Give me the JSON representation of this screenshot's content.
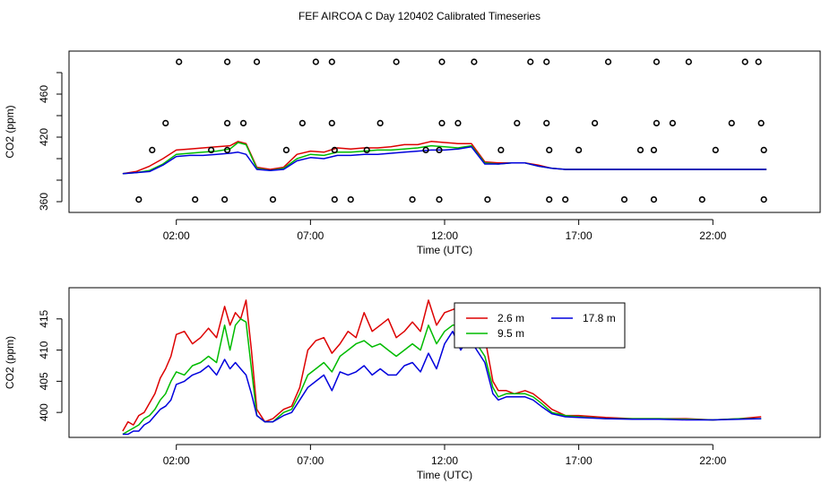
{
  "title": "FEF AIRCOA C  Day 120402  Calibrated Timeseries",
  "chart_data": [
    {
      "type": "scatter",
      "panel": "top",
      "xlabel": "Time (UTC)",
      "ylabel": "CO2 (ppm)",
      "xlim": [
        -2,
        26
      ],
      "ylim": [
        350,
        500
      ],
      "xticks": [
        2,
        7,
        12,
        17,
        22
      ],
      "xtick_labels": [
        "02:00",
        "07:00",
        "12:00",
        "17:00",
        "22:00"
      ],
      "yticks": [
        360,
        380,
        400,
        420,
        440,
        460,
        480
      ],
      "ytick_labels": [
        "360",
        "",
        "",
        "420",
        "",
        "460",
        ""
      ],
      "points": [
        {
          "x": 0.6,
          "y": 362
        },
        {
          "x": 1.1,
          "y": 408
        },
        {
          "x": 1.6,
          "y": 433
        },
        {
          "x": 2.1,
          "y": 490
        },
        {
          "x": 2.7,
          "y": 362
        },
        {
          "x": 3.3,
          "y": 408
        },
        {
          "x": 3.8,
          "y": 362
        },
        {
          "x": 3.9,
          "y": 433
        },
        {
          "x": 3.9,
          "y": 408
        },
        {
          "x": 3.9,
          "y": 490
        },
        {
          "x": 4.5,
          "y": 433
        },
        {
          "x": 5.0,
          "y": 490
        },
        {
          "x": 5.6,
          "y": 362
        },
        {
          "x": 6.1,
          "y": 408
        },
        {
          "x": 6.7,
          "y": 433
        },
        {
          "x": 7.2,
          "y": 490
        },
        {
          "x": 7.8,
          "y": 490
        },
        {
          "x": 7.8,
          "y": 433
        },
        {
          "x": 7.9,
          "y": 362
        },
        {
          "x": 7.9,
          "y": 408
        },
        {
          "x": 8.5,
          "y": 362
        },
        {
          "x": 9.1,
          "y": 408
        },
        {
          "x": 9.6,
          "y": 433
        },
        {
          "x": 10.2,
          "y": 490
        },
        {
          "x": 10.8,
          "y": 362
        },
        {
          "x": 11.3,
          "y": 408
        },
        {
          "x": 11.8,
          "y": 362
        },
        {
          "x": 11.8,
          "y": 408
        },
        {
          "x": 11.9,
          "y": 433
        },
        {
          "x": 11.9,
          "y": 490
        },
        {
          "x": 12.5,
          "y": 433
        },
        {
          "x": 13.1,
          "y": 490
        },
        {
          "x": 13.6,
          "y": 362
        },
        {
          "x": 14.1,
          "y": 408
        },
        {
          "x": 14.7,
          "y": 433
        },
        {
          "x": 15.2,
          "y": 490
        },
        {
          "x": 15.8,
          "y": 490
        },
        {
          "x": 15.8,
          "y": 433
        },
        {
          "x": 15.9,
          "y": 408
        },
        {
          "x": 15.9,
          "y": 362
        },
        {
          "x": 16.5,
          "y": 362
        },
        {
          "x": 17.0,
          "y": 408
        },
        {
          "x": 17.6,
          "y": 433
        },
        {
          "x": 18.1,
          "y": 490
        },
        {
          "x": 18.7,
          "y": 362
        },
        {
          "x": 19.3,
          "y": 408
        },
        {
          "x": 19.8,
          "y": 362
        },
        {
          "x": 19.8,
          "y": 408
        },
        {
          "x": 19.9,
          "y": 433
        },
        {
          "x": 19.9,
          "y": 490
        },
        {
          "x": 20.5,
          "y": 433
        },
        {
          "x": 21.1,
          "y": 490
        },
        {
          "x": 21.6,
          "y": 362
        },
        {
          "x": 22.1,
          "y": 408
        },
        {
          "x": 22.7,
          "y": 433
        },
        {
          "x": 23.2,
          "y": 490
        },
        {
          "x": 23.7,
          "y": 490
        },
        {
          "x": 23.8,
          "y": 433
        },
        {
          "x": 23.9,
          "y": 408
        },
        {
          "x": 23.9,
          "y": 362
        }
      ],
      "series": [
        {
          "name": "2.6 m",
          "color": "#dd0000",
          "x": [
            0,
            0.5,
            1,
            1.5,
            2,
            2.5,
            3,
            3.5,
            4,
            4.3,
            4.6,
            5,
            5.5,
            6,
            6.5,
            7,
            7.5,
            8,
            8.5,
            9,
            9.5,
            10,
            10.5,
            11,
            11.5,
            12,
            12.5,
            13,
            13.5,
            14,
            14.5,
            15,
            15.5,
            16,
            16.5,
            17,
            17.5,
            18,
            19,
            20,
            21,
            22,
            23,
            24
          ],
          "y": [
            386,
            388,
            393,
            400,
            408,
            409,
            410,
            411,
            412,
            416,
            414,
            392,
            390,
            392,
            404,
            407,
            406,
            410,
            409,
            410,
            410,
            411,
            413,
            413,
            416,
            415,
            414,
            414,
            397,
            396,
            396,
            396,
            394,
            391,
            390,
            390,
            390,
            390,
            390,
            390,
            390,
            390,
            390,
            390
          ]
        },
        {
          "name": "9.5 m",
          "color": "#00bb00",
          "x": [
            0,
            0.5,
            1,
            1.5,
            2,
            2.5,
            3,
            3.5,
            4,
            4.3,
            4.6,
            5,
            5.5,
            6,
            6.5,
            7,
            7.5,
            8,
            8.5,
            9,
            9.5,
            10,
            10.5,
            11,
            11.5,
            12,
            12.5,
            13,
            13.5,
            14,
            14.5,
            15,
            15.5,
            16,
            16.5,
            17,
            17.5,
            18,
            19,
            20,
            21,
            22,
            23,
            24
          ],
          "y": [
            386,
            387,
            389,
            395,
            404,
            405,
            406,
            407,
            409,
            415,
            413,
            391,
            389,
            391,
            400,
            404,
            403,
            406,
            406,
            407,
            408,
            408,
            409,
            410,
            412,
            411,
            410,
            412,
            396,
            395,
            396,
            396,
            393,
            391,
            390,
            390,
            390,
            390,
            390,
            390,
            390,
            390,
            390,
            390
          ]
        },
        {
          "name": "17.8 m",
          "color": "#0000dd",
          "x": [
            0,
            0.5,
            1,
            1.5,
            2,
            2.5,
            3,
            3.5,
            4,
            4.3,
            4.6,
            5,
            5.5,
            6,
            6.5,
            7,
            7.5,
            8,
            8.5,
            9,
            9.5,
            10,
            10.5,
            11,
            11.5,
            12,
            12.5,
            13,
            13.5,
            14,
            14.5,
            15,
            15.5,
            16,
            16.5,
            17,
            17.5,
            18,
            19,
            20,
            21,
            22,
            23,
            24
          ],
          "y": [
            386,
            387,
            388,
            394,
            402,
            403,
            403,
            404,
            405,
            406,
            404,
            390,
            389,
            390,
            398,
            401,
            400,
            403,
            403,
            404,
            404,
            405,
            406,
            407,
            408,
            408,
            409,
            411,
            395,
            395,
            396,
            396,
            393,
            391,
            390,
            390,
            390,
            390,
            390,
            390,
            390,
            390,
            390,
            390
          ]
        }
      ]
    },
    {
      "type": "line",
      "panel": "bottom",
      "xlabel": "Time (UTC)",
      "ylabel": "CO2 (ppm)",
      "xlim": [
        -2,
        26
      ],
      "ylim": [
        396,
        420
      ],
      "xticks": [
        2,
        7,
        12,
        17,
        22
      ],
      "xtick_labels": [
        "02:00",
        "07:00",
        "12:00",
        "17:00",
        "22:00"
      ],
      "yticks": [
        400,
        405,
        410,
        415
      ],
      "ytick_labels": [
        "400",
        "405",
        "410",
        "415"
      ],
      "legend": {
        "position": "top-right-inset",
        "columns": 2
      },
      "series": [
        {
          "name": "2.6 m",
          "color": "#dd0000",
          "x": [
            0,
            0.2,
            0.4,
            0.6,
            0.8,
            1.0,
            1.2,
            1.4,
            1.6,
            1.8,
            2.0,
            2.3,
            2.6,
            2.9,
            3.2,
            3.5,
            3.8,
            4.0,
            4.2,
            4.4,
            4.6,
            4.8,
            5.0,
            5.3,
            5.6,
            6.0,
            6.3,
            6.6,
            6.9,
            7.2,
            7.5,
            7.8,
            8.1,
            8.4,
            8.7,
            9.0,
            9.3,
            9.6,
            9.9,
            10.2,
            10.5,
            10.8,
            11.1,
            11.4,
            11.7,
            12.0,
            12.3,
            12.6,
            12.9,
            13.2,
            13.5,
            13.8,
            14.0,
            14.3,
            14.6,
            15.0,
            15.3,
            15.6,
            16.0,
            16.5,
            17,
            18,
            19,
            20,
            21,
            22,
            23,
            23.8
          ],
          "y": [
            397,
            398.5,
            398,
            399.5,
            400,
            401.5,
            403,
            405.5,
            407,
            409,
            412.5,
            413,
            411,
            412,
            413.5,
            412,
            417,
            414,
            416,
            415,
            418,
            410,
            400.5,
            398.5,
            399,
            400.5,
            401,
            404,
            410,
            411.5,
            412,
            409.5,
            411,
            413,
            412,
            416,
            413,
            414,
            415,
            412,
            413,
            414.5,
            413,
            418,
            414,
            416,
            416.5,
            417,
            415,
            413,
            412,
            405,
            403.5,
            403.5,
            403,
            403.5,
            403,
            402,
            400.5,
            399.5,
            399.5,
            399.2,
            399,
            399,
            399,
            398.8,
            399,
            399.3
          ]
        },
        {
          "name": "9.5 m",
          "color": "#00bb00",
          "x": [
            0,
            0.2,
            0.4,
            0.6,
            0.8,
            1.0,
            1.2,
            1.4,
            1.6,
            1.8,
            2.0,
            2.3,
            2.6,
            2.9,
            3.2,
            3.5,
            3.8,
            4.0,
            4.2,
            4.4,
            4.6,
            4.8,
            5.0,
            5.3,
            5.6,
            6.0,
            6.3,
            6.6,
            6.9,
            7.2,
            7.5,
            7.8,
            8.1,
            8.4,
            8.7,
            9.0,
            9.3,
            9.6,
            9.9,
            10.2,
            10.5,
            10.8,
            11.1,
            11.4,
            11.7,
            12.0,
            12.3,
            12.6,
            12.9,
            13.2,
            13.5,
            13.8,
            14.0,
            14.3,
            14.6,
            15.0,
            15.3,
            15.6,
            16.0,
            16.5,
            17,
            18,
            19,
            20,
            21,
            22,
            23,
            23.8
          ],
          "y": [
            396.5,
            397,
            397.5,
            398,
            399,
            399.5,
            400.5,
            402,
            403,
            405,
            406.5,
            406,
            407.5,
            408,
            409,
            408,
            414,
            410,
            414,
            415,
            414.5,
            407,
            399.5,
            398.5,
            398.5,
            400,
            400.5,
            403,
            406,
            407,
            408,
            406.5,
            409,
            410,
            411,
            411.5,
            410.5,
            411,
            410,
            409,
            410,
            411,
            410,
            414,
            411,
            413,
            414,
            414,
            413,
            411,
            409,
            404,
            402.5,
            403,
            403,
            403,
            402.5,
            401.5,
            400,
            399.5,
            399.3,
            399,
            399,
            399,
            398.9,
            398.8,
            399,
            399
          ]
        },
        {
          "name": "17.8 m",
          "color": "#0000dd",
          "x": [
            0,
            0.2,
            0.4,
            0.6,
            0.8,
            1.0,
            1.2,
            1.4,
            1.6,
            1.8,
            2.0,
            2.3,
            2.6,
            2.9,
            3.2,
            3.5,
            3.8,
            4.0,
            4.2,
            4.4,
            4.6,
            4.8,
            5.0,
            5.3,
            5.6,
            6.0,
            6.3,
            6.6,
            6.9,
            7.2,
            7.5,
            7.8,
            8.1,
            8.4,
            8.7,
            9.0,
            9.3,
            9.6,
            9.9,
            10.2,
            10.5,
            10.8,
            11.1,
            11.4,
            11.7,
            12.0,
            12.3,
            12.6,
            12.9,
            13.2,
            13.5,
            13.8,
            14.0,
            14.3,
            14.6,
            15.0,
            15.3,
            15.6,
            16.0,
            16.5,
            17,
            18,
            19,
            20,
            21,
            22,
            23,
            23.8
          ],
          "y": [
            396.5,
            396.5,
            397,
            397,
            398,
            398.5,
            399.5,
            400.5,
            401,
            402,
            404.5,
            405,
            406,
            406.5,
            407.5,
            406,
            408.5,
            407,
            408,
            407,
            406,
            403,
            399.5,
            398.5,
            398.5,
            399.5,
            400,
            402,
            404,
            405,
            406,
            403.5,
            406.5,
            406,
            406.5,
            407.5,
            406,
            407,
            406,
            406,
            407.5,
            408,
            406.5,
            409.5,
            407,
            411,
            413,
            410,
            412,
            410,
            408,
            403,
            402,
            402.5,
            402.5,
            402.5,
            402,
            401,
            399.8,
            399.3,
            399.2,
            399,
            398.9,
            398.9,
            398.8,
            398.8,
            398.9,
            399
          ]
        }
      ]
    }
  ]
}
